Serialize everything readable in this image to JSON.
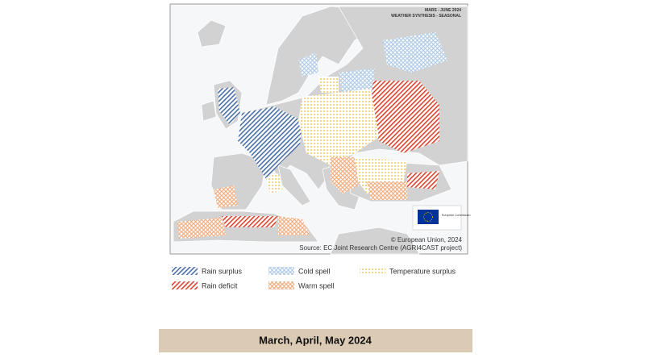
{
  "map": {
    "header": {
      "title": "MARS - JUNE 2024",
      "subtitle": "WEATHER SYNTHESIS - SEASONAL"
    },
    "logo": {
      "label": "European Commission"
    },
    "credits": {
      "copyright": "© European Union, 2024",
      "source": "Source: EC Joint Research Centre (AGRI4CAST project)"
    }
  },
  "legend": [
    {
      "label": "Rain surplus"
    },
    {
      "label": "Cold spell"
    },
    {
      "label": "Temperature surplus"
    },
    {
      "label": "Rain deficit"
    },
    {
      "label": "Warm spell"
    }
  ],
  "caption": "March, April, May 2024"
}
